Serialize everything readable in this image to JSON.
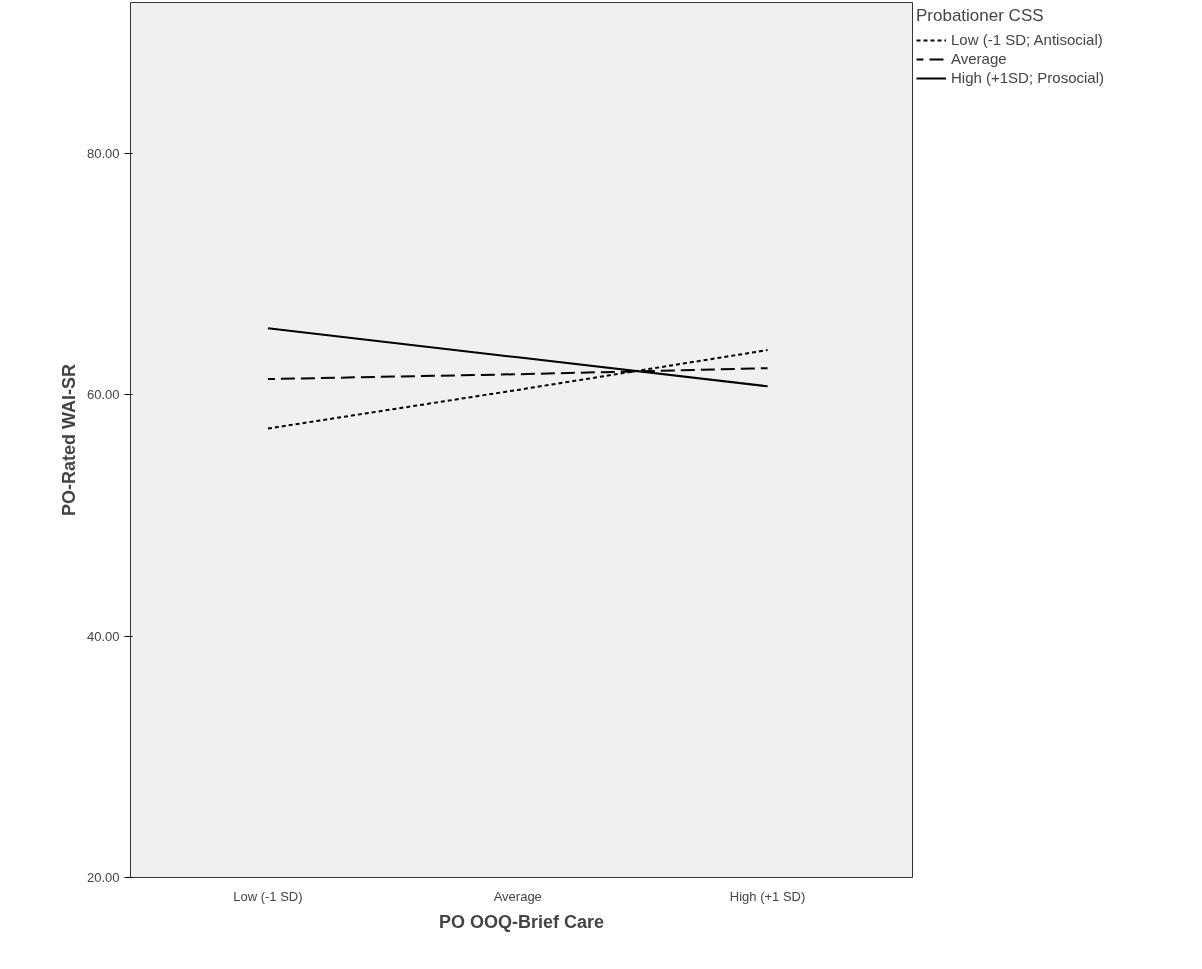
{
  "chart_data": {
    "type": "line",
    "xlabel": "PO OOQ-Brief Care",
    "ylabel": "PO-Rated WAI-SR",
    "legend_title": "Probationer CSS",
    "categories": [
      "Low (-1 SD)",
      "Average",
      "High (+1 SD)"
    ],
    "series": [
      {
        "name": "Low (-1 SD; Antisocial)",
        "color": "#000000",
        "line_style": "dotted",
        "values": [
          57.2,
          60.4,
          63.7
        ]
      },
      {
        "name": "Average",
        "color": "#000000",
        "line_style": "dashed",
        "values": [
          61.3,
          61.7,
          62.2
        ]
      },
      {
        "name": "High (+1SD; Prosocial)",
        "color": "#000000",
        "line_style": "solid",
        "values": [
          65.5,
          63.1,
          60.7
        ]
      }
    ],
    "ylim": [
      20,
      92.5
    ],
    "yticks": [
      {
        "value": 20,
        "label": "20.00"
      },
      {
        "value": 40,
        "label": "40.00"
      },
      {
        "value": 60,
        "label": "60.00"
      },
      {
        "value": 80,
        "label": "80.00"
      }
    ],
    "grid": false,
    "legend": "top right",
    "marker": "none"
  }
}
